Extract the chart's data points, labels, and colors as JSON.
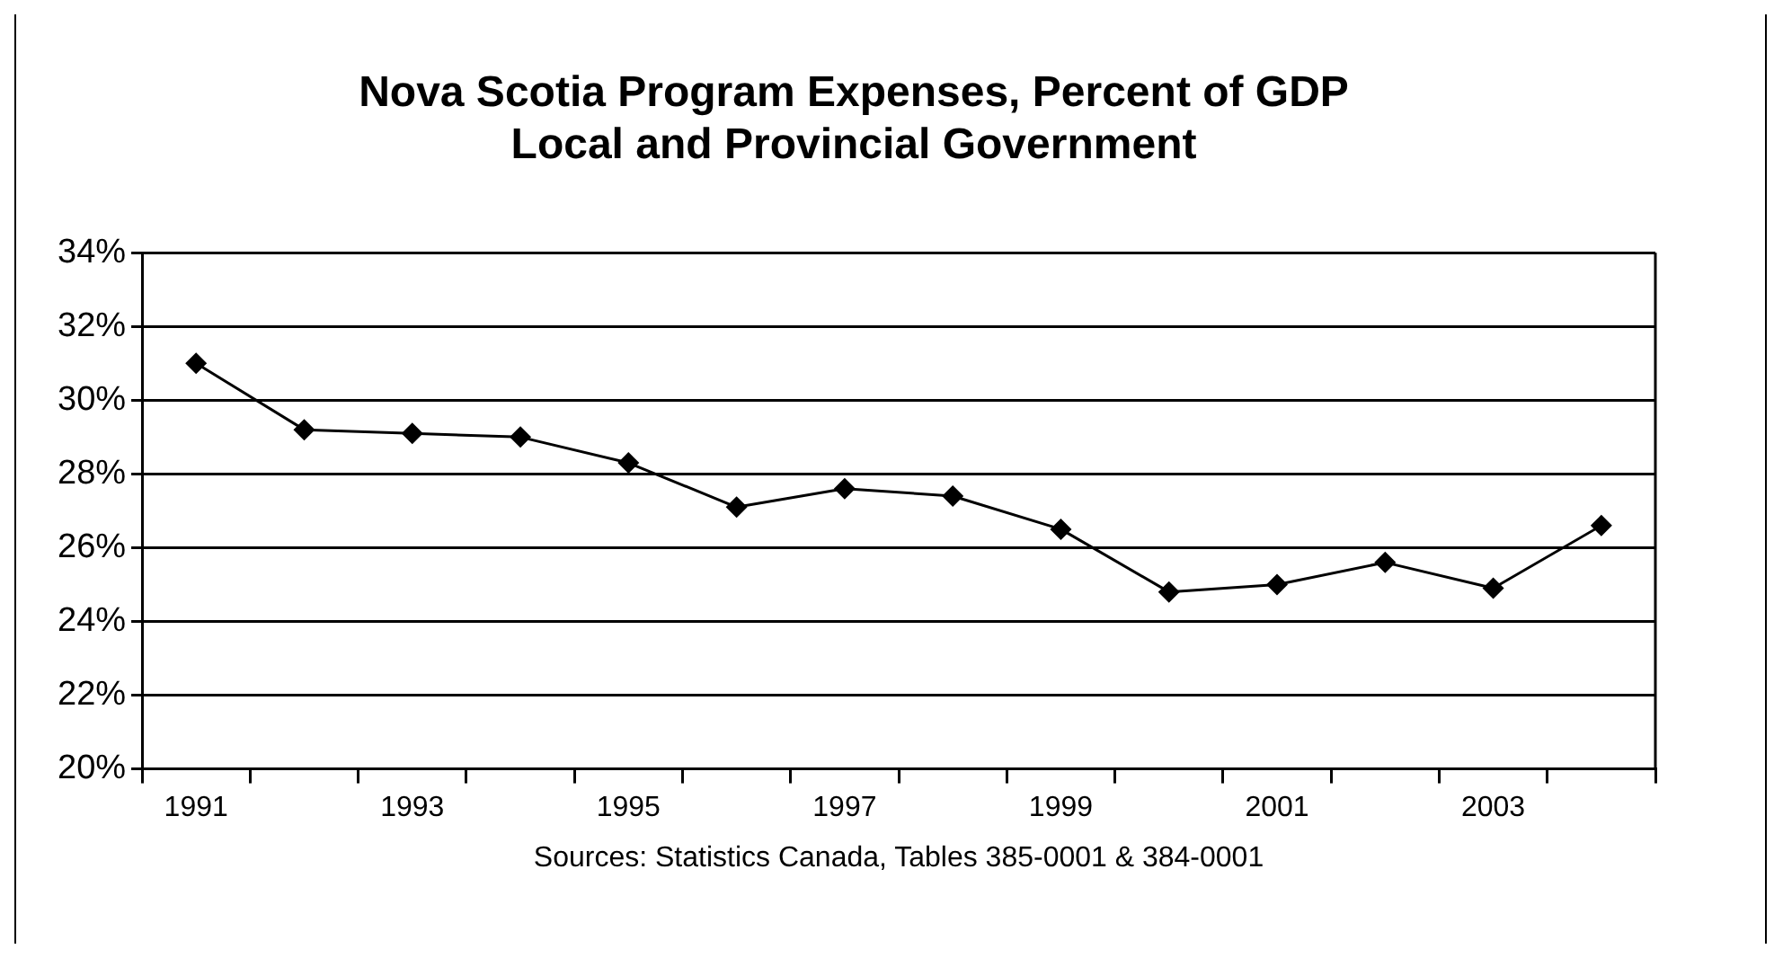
{
  "chart_data": {
    "type": "line",
    "title": [
      "Nova Scotia Program Expenses, Percent of GDP",
      "Local and Provincial Government"
    ],
    "categories": [
      "1991",
      null,
      "1993",
      null,
      "1995",
      null,
      "1997",
      null,
      "1999",
      null,
      "2001",
      null,
      "2003",
      null
    ],
    "series": [
      {
        "color": "#000000",
        "values": [
          31.0,
          29.2,
          29.1,
          29.0,
          28.3,
          27.1,
          27.6,
          27.4,
          26.5,
          24.8,
          25.0,
          25.6,
          24.9,
          26.6
        ]
      }
    ],
    "ylim": [
      20,
      34
    ],
    "yticks": [
      {
        "value": 20,
        "label": "20%"
      },
      {
        "value": 22,
        "label": "22%"
      },
      {
        "value": 24,
        "label": "24%"
      },
      {
        "value": 26,
        "label": "26%"
      },
      {
        "value": 28,
        "label": "28%"
      },
      {
        "value": 30,
        "label": "30%"
      },
      {
        "value": 32,
        "label": "32%"
      },
      {
        "value": 34,
        "label": "34%"
      }
    ],
    "grid": "y",
    "marker": "diamond",
    "legend": false,
    "annotations": [
      "Sources: Statistics Canada, Tables 385-0001 & 384-0001"
    ]
  }
}
